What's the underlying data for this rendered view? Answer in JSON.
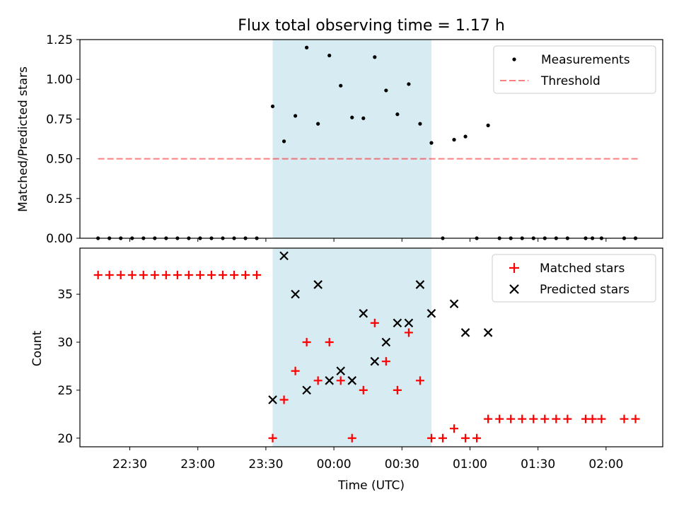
{
  "title": "Flux total observing time = 1.17 h",
  "xlabel": "Time (UTC)",
  "x_ticks": [
    "22:30",
    "23:00",
    "23:30",
    "00:00",
    "00:30",
    "01:00",
    "01:30",
    "02:00"
  ],
  "colors": {
    "band": "#add8e6",
    "threshold": "#ff0000",
    "matched": "#ff0000",
    "predicted": "#000000",
    "measurements": "#000000"
  },
  "chart_data": [
    {
      "type": "scatter",
      "ylabel": "Matched/Predicted stars",
      "ylim": [
        0,
        1.25
      ],
      "yticks": [
        "0.00",
        "0.25",
        "0.50",
        "0.75",
        "1.00",
        "1.25"
      ],
      "xlim": [
        "22:08",
        "02:25"
      ],
      "shaded_interval": [
        "23:33",
        "00:43"
      ],
      "legend_position": "top-right",
      "legend": [
        "Measurements",
        "Threshold"
      ],
      "threshold": {
        "name": "Threshold",
        "value": 0.5,
        "x_range": [
          "22:16",
          "02:14"
        ]
      },
      "series": [
        {
          "name": "Measurements",
          "points": [
            [
              "22:16",
              0
            ],
            [
              "22:21",
              0
            ],
            [
              "22:26",
              0
            ],
            [
              "22:31",
              0
            ],
            [
              "22:36",
              0
            ],
            [
              "22:41",
              0
            ],
            [
              "22:46",
              0
            ],
            [
              "22:51",
              0
            ],
            [
              "22:56",
              0
            ],
            [
              "23:01",
              0
            ],
            [
              "23:06",
              0
            ],
            [
              "23:11",
              0
            ],
            [
              "23:16",
              0
            ],
            [
              "23:21",
              0
            ],
            [
              "23:26",
              0
            ],
            [
              "23:33",
              0.83
            ],
            [
              "23:38",
              0.61
            ],
            [
              "23:43",
              0.77
            ],
            [
              "23:48",
              1.2
            ],
            [
              "23:53",
              0.72
            ],
            [
              "23:58",
              1.15
            ],
            [
              "00:03",
              0.96
            ],
            [
              "00:08",
              0.76
            ],
            [
              "00:13",
              0.755
            ],
            [
              "00:18",
              1.14
            ],
            [
              "00:23",
              0.93
            ],
            [
              "00:28",
              0.78
            ],
            [
              "00:33",
              0.97
            ],
            [
              "00:38",
              0.72
            ],
            [
              "00:43",
              0.6
            ],
            [
              "00:48",
              0
            ],
            [
              "00:53",
              0.62
            ],
            [
              "00:58",
              0.64
            ],
            [
              "01:03",
              0
            ],
            [
              "01:08",
              0.71
            ],
            [
              "01:13",
              0
            ],
            [
              "01:18",
              0
            ],
            [
              "01:23",
              0
            ],
            [
              "01:28",
              0
            ],
            [
              "01:33",
              0
            ],
            [
              "01:38",
              0
            ],
            [
              "01:43",
              0
            ],
            [
              "01:51",
              0
            ],
            [
              "01:54",
              0
            ],
            [
              "01:58",
              0
            ],
            [
              "02:08",
              0
            ],
            [
              "02:13",
              0
            ]
          ]
        }
      ]
    },
    {
      "type": "scatter",
      "ylabel": "Count",
      "ylim": [
        19.1,
        39.8
      ],
      "yticks": [
        "20",
        "25",
        "30",
        "35"
      ],
      "xlim": [
        "22:08",
        "02:25"
      ],
      "shaded_interval": [
        "23:33",
        "00:43"
      ],
      "legend_position": "top-right",
      "legend": [
        "Matched stars",
        "Predicted stars"
      ],
      "series": [
        {
          "name": "Matched stars",
          "points": [
            [
              "22:16",
              37
            ],
            [
              "22:21",
              37
            ],
            [
              "22:26",
              37
            ],
            [
              "22:31",
              37
            ],
            [
              "22:36",
              37
            ],
            [
              "22:41",
              37
            ],
            [
              "22:46",
              37
            ],
            [
              "22:51",
              37
            ],
            [
              "22:56",
              37
            ],
            [
              "23:01",
              37
            ],
            [
              "23:06",
              37
            ],
            [
              "23:11",
              37
            ],
            [
              "23:16",
              37
            ],
            [
              "23:21",
              37
            ],
            [
              "23:26",
              37
            ],
            [
              "23:33",
              20
            ],
            [
              "23:38",
              24
            ],
            [
              "23:43",
              27
            ],
            [
              "23:48",
              30
            ],
            [
              "23:53",
              26
            ],
            [
              "23:58",
              30
            ],
            [
              "00:03",
              26
            ],
            [
              "00:08",
              20
            ],
            [
              "00:13",
              25
            ],
            [
              "00:18",
              32
            ],
            [
              "00:23",
              28
            ],
            [
              "00:28",
              25
            ],
            [
              "00:33",
              31
            ],
            [
              "00:38",
              26
            ],
            [
              "00:43",
              20
            ],
            [
              "00:48",
              20
            ],
            [
              "00:53",
              21
            ],
            [
              "00:58",
              20
            ],
            [
              "01:03",
              20
            ],
            [
              "01:08",
              22
            ],
            [
              "01:13",
              22
            ],
            [
              "01:18",
              22
            ],
            [
              "01:23",
              22
            ],
            [
              "01:28",
              22
            ],
            [
              "01:33",
              22
            ],
            [
              "01:38",
              22
            ],
            [
              "01:43",
              22
            ],
            [
              "01:51",
              22
            ],
            [
              "01:54",
              22
            ],
            [
              "01:58",
              22
            ],
            [
              "02:08",
              22
            ],
            [
              "02:13",
              22
            ]
          ]
        },
        {
          "name": "Predicted stars",
          "points": [
            [
              "23:33",
              24
            ],
            [
              "23:38",
              39
            ],
            [
              "23:43",
              35
            ],
            [
              "23:48",
              25
            ],
            [
              "23:53",
              36
            ],
            [
              "23:58",
              26
            ],
            [
              "00:03",
              27
            ],
            [
              "00:08",
              26
            ],
            [
              "00:13",
              33
            ],
            [
              "00:18",
              28
            ],
            [
              "00:23",
              30
            ],
            [
              "00:28",
              32
            ],
            [
              "00:33",
              32
            ],
            [
              "00:38",
              36
            ],
            [
              "00:43",
              33
            ],
            [
              "00:53",
              34
            ],
            [
              "00:58",
              31
            ],
            [
              "01:08",
              31
            ]
          ]
        }
      ]
    }
  ]
}
